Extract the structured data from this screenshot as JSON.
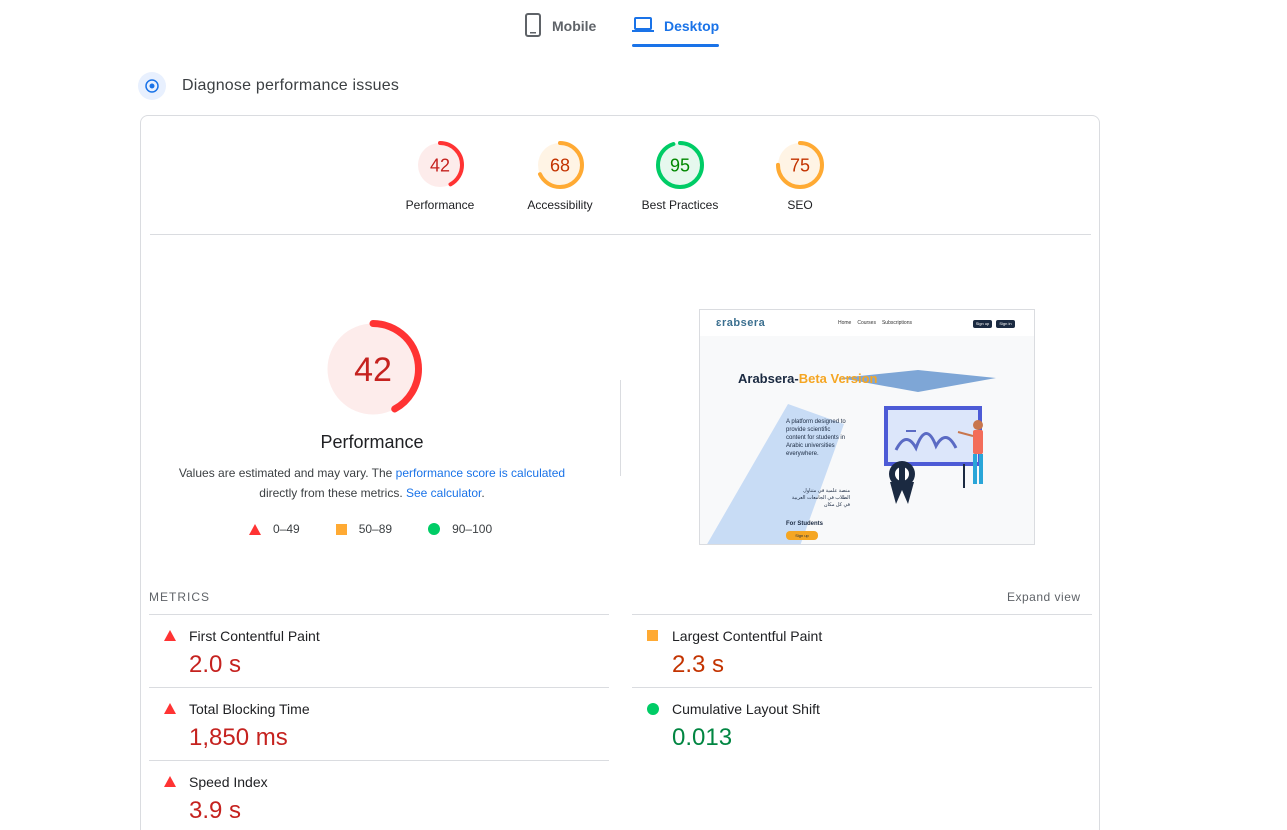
{
  "tabs": {
    "mobile_label": "Mobile",
    "desktop_label": "Desktop",
    "active": "desktop"
  },
  "header": {
    "title": "Diagnose performance issues"
  },
  "colors": {
    "fail": "#ff3333",
    "average": "#ffaa33",
    "pass": "#00cc66",
    "accent": "#1a73e8"
  },
  "scores": [
    {
      "label": "Performance",
      "value": "42",
      "score": 42,
      "rating": "fail"
    },
    {
      "label": "Accessibility",
      "value": "68",
      "score": 68,
      "rating": "average"
    },
    {
      "label": "Best Practices",
      "value": "95",
      "score": 95,
      "rating": "pass"
    },
    {
      "label": "SEO",
      "value": "75",
      "score": 75,
      "rating": "average"
    }
  ],
  "performance": {
    "score": "42",
    "score_num": 42,
    "label": "Performance",
    "note_before": "Values are estimated and may vary. The ",
    "note_link1": "performance score is calculated",
    "note_middle": " directly from these metrics. ",
    "note_link2": "See calculator",
    "note_after": "."
  },
  "legend": [
    {
      "range": "0–49",
      "icon": "triangle-icon"
    },
    {
      "range": "50–89",
      "icon": "square-icon"
    },
    {
      "range": "90–100",
      "icon": "circle-icon"
    }
  ],
  "screenshot": {
    "logo": "ɛrabsera",
    "nav_links": [
      "Home",
      "Courses",
      "Subscriptions"
    ],
    "buttons": [
      "Sign up",
      "Sign in"
    ],
    "title_main": "Arabsera-",
    "title_beta": "Beta Version",
    "description": "A platform designed to provide scientific content for students in Arabic universities everywhere.",
    "arabic_text": "منصة علمية في متناول الطلاب في الجامعات العربية في كل مكان",
    "for_students": "For Students",
    "signup_btn": "Sign up"
  },
  "metrics": {
    "heading": "METRICS",
    "expand_label": "Expand view",
    "left": [
      {
        "label": "First Contentful Paint",
        "value": "2.0 s",
        "rating": "fail"
      },
      {
        "label": "Total Blocking Time",
        "value": "1,850 ms",
        "rating": "fail"
      },
      {
        "label": "Speed Index",
        "value": "3.9 s",
        "rating": "fail"
      }
    ],
    "right": [
      {
        "label": "Largest Contentful Paint",
        "value": "2.3 s",
        "rating": "average"
      },
      {
        "label": "Cumulative Layout Shift",
        "value": "0.013",
        "rating": "pass"
      }
    ]
  }
}
